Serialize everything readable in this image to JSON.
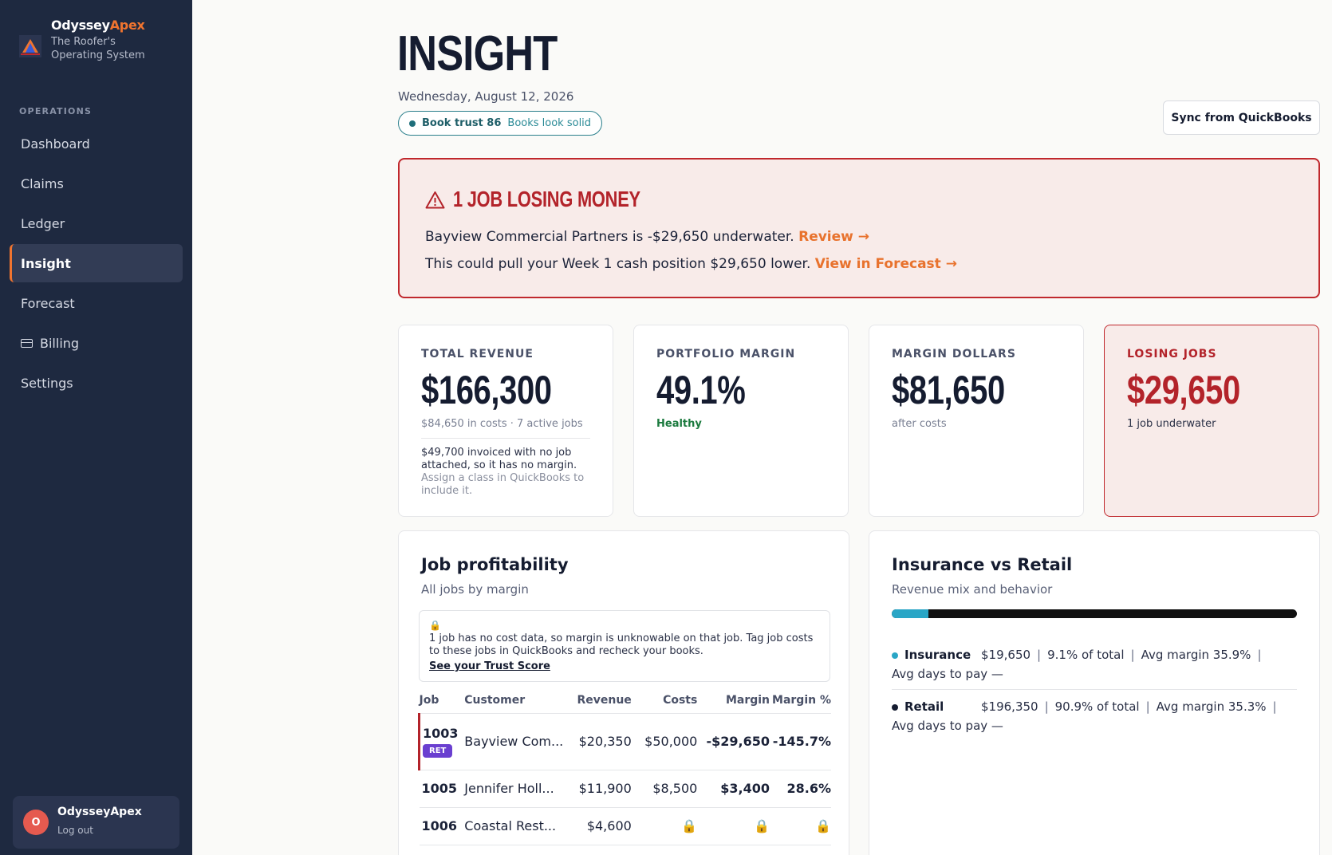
{
  "sidebar": {
    "brand_first": "Odyssey",
    "brand_second": "Apex",
    "tagline": "The Roofer's Operating System",
    "section": "OPERATIONS",
    "items": [
      {
        "label": "Dashboard"
      },
      {
        "label": "Claims"
      },
      {
        "label": "Ledger"
      },
      {
        "label": "Insight"
      },
      {
        "label": "Forecast"
      },
      {
        "label": "Billing"
      },
      {
        "label": "Settings"
      }
    ],
    "user": {
      "initial": "O",
      "name": "OdysseyApex",
      "logout": "Log out"
    }
  },
  "header": {
    "title": "INSIGHT",
    "date": "Wednesday, August 12, 2026",
    "trust_score": "Book trust 86",
    "trust_status": "Books look solid",
    "sync_label": "Sync from QuickBooks"
  },
  "alert": {
    "title": "1 JOB LOSING MONEY",
    "line1": "Bayview Commercial Partners is -$29,650 underwater.",
    "line1_link": "Review →",
    "line2": "This could pull your Week 1 cash position $29,650 lower.",
    "line2_link": "View in Forecast →"
  },
  "kpis": [
    {
      "label": "TOTAL REVENUE",
      "value": "$166,300",
      "sub": "$84,650 in costs · 7 active jobs",
      "note": "$49,700 invoiced with no job attached, so it has no margin.",
      "note_muted": "Assign a class in QuickBooks to include it."
    },
    {
      "label": "PORTFOLIO MARGIN",
      "value": "49.1%",
      "sub": "Healthy"
    },
    {
      "label": "MARGIN DOLLARS",
      "value": "$81,650",
      "sub": "after costs"
    },
    {
      "label": "LOSING JOBS",
      "value": "$29,650",
      "sub": "1 job underwater"
    }
  ],
  "job_panel": {
    "title": "Job profitability",
    "subtitle": "All jobs by margin",
    "notice_icon": "🔒",
    "notice": "1 job has no cost data, so margin is unknowable on that job. Tag job costs to these jobs in QuickBooks and recheck your books.",
    "notice_link": "See your Trust Score",
    "columns": [
      "Job",
      "Customer",
      "Revenue",
      "Costs",
      "Margin",
      "Margin %"
    ],
    "rows": [
      {
        "job": "1003",
        "badge": "RET",
        "customer": "Bayview Com...",
        "revenue": "$20,350",
        "costs": "$50,000",
        "margin": "-$29,650",
        "margin_pct": "-145.7%"
      },
      {
        "job": "1005",
        "customer": "Jennifer Holl...",
        "revenue": "$11,900",
        "costs": "$8,500",
        "margin": "$3,400",
        "margin_pct": "28.6%"
      },
      {
        "job": "1006",
        "customer": "Coastal Rest...",
        "revenue": "$4,600",
        "costs": "🔒",
        "margin": "🔒",
        "margin_pct": "🔒"
      }
    ]
  },
  "mix_panel": {
    "title": "Insurance vs Retail",
    "subtitle": "Revenue mix and behavior",
    "insurance_share": 0.091,
    "colors": {
      "insurance": "#2aa6c6",
      "retail": "#111111"
    },
    "segments": [
      {
        "name": "Insurance",
        "amount": "$19,650",
        "share": "9.1% of total",
        "avg_margin": "Avg margin 35.9%",
        "days": "Avg days to pay —"
      },
      {
        "name": "Retail",
        "amount": "$196,350",
        "share": "90.9% of total",
        "avg_margin": "Avg margin 35.3%",
        "days": "Avg days to pay —"
      }
    ]
  }
}
